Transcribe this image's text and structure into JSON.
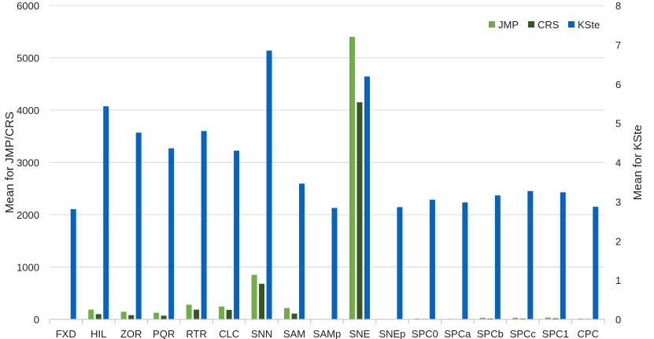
{
  "chart_data": {
    "type": "bar",
    "categories": [
      "FXD",
      "HIL",
      "ZOR",
      "PQR",
      "RTR",
      "CLC",
      "SNN",
      "SAM",
      "SAMp",
      "SNE",
      "SNEp",
      "SPC0",
      "SPCa",
      "SPCb",
      "SPCc",
      "SPC1",
      "CPC"
    ],
    "series": [
      {
        "name": "JMP",
        "axis": "left",
        "color": "#70ad47",
        "values": [
          0,
          185,
          145,
          125,
          280,
          245,
          850,
          215,
          0,
          5400,
          0,
          15,
          10,
          30,
          30,
          35,
          15
        ]
      },
      {
        "name": "CRS",
        "axis": "left",
        "color": "#375623",
        "values": [
          0,
          100,
          80,
          70,
          185,
          180,
          680,
          110,
          0,
          4150,
          0,
          10,
          8,
          15,
          15,
          20,
          10
        ]
      },
      {
        "name": "KSte",
        "axis": "right",
        "color": "#0563c1",
        "values": [
          2.81,
          5.43,
          4.76,
          4.36,
          4.8,
          4.3,
          6.85,
          3.46,
          2.84,
          6.19,
          2.86,
          3.05,
          2.98,
          3.16,
          3.27,
          3.24,
          2.87
        ]
      }
    ],
    "ylabel": "Mean for JMP/CRS",
    "y2label": "Mean for KSte",
    "ylim": [
      0,
      6000
    ],
    "y2lim": [
      0,
      8
    ],
    "yticks": [
      "0",
      "1000",
      "2000",
      "3000",
      "4000",
      "5000",
      "6000"
    ],
    "y2ticks": [
      "0",
      "1",
      "2",
      "3",
      "4",
      "5",
      "6",
      "7",
      "8"
    ],
    "grid": true,
    "legend_position": "top-right"
  }
}
